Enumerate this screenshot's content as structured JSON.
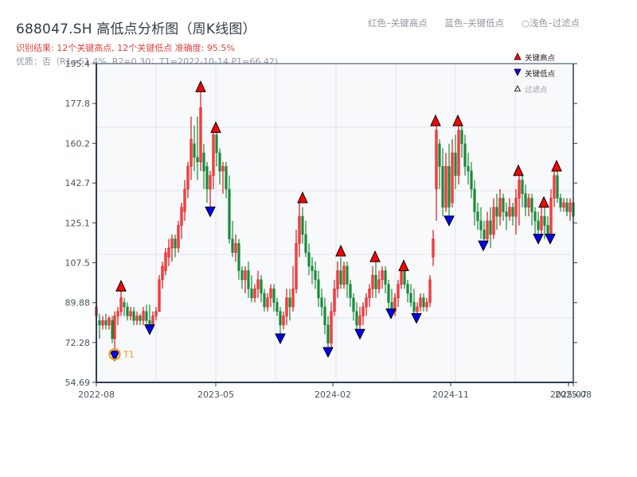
{
  "header": {
    "title": "688047.SH 高低点分析图（周K线图）",
    "result_line": "识别结果: 12个关键高点, 12个关键低点   准确度: 95.5%",
    "quality_line": "优质：否（R1=51.4%, R2=0.30；T1=2022-10-14 P1=66.42)"
  },
  "top_legend": {
    "red": "红色–关键高点",
    "blue": "蓝色–关键低点",
    "light": "○浅色–过滤点"
  },
  "legend": {
    "high": "关键高点",
    "low": "关键低点",
    "filter": "过滤点"
  },
  "colors": {
    "up": "#d7191c",
    "down": "#1a8a3a",
    "high_marker": "#ff0000",
    "low_marker": "#0000ff",
    "t1_ring": "#f39c12",
    "grid": "#e1e5ea",
    "plot_bg": "#f7f9fb",
    "axis": "#2c3e50"
  },
  "chart_data": {
    "type": "candlestick",
    "title": "688047.SH 高低点分析图（周K线图）",
    "xlabel": "",
    "ylabel": "",
    "ylim": [
      54.69,
      195.4
    ],
    "y_ticks": [
      "195.4",
      "177.8",
      "160.2",
      "142.7",
      "125.1",
      "107.5",
      "89.88",
      "72.28",
      "54.69"
    ],
    "x_ticks": [
      "2022-08",
      "2023-05",
      "2024-02",
      "2024-11",
      "2025-07",
      "2025-08"
    ],
    "grid": true,
    "legend_position": "upper right",
    "annotation": {
      "label": "T1",
      "date": "2022-10-14",
      "price": 66.42
    },
    "key_highs": [
      {
        "x": 152,
        "price": 95.0
      },
      {
        "x": 252,
        "price": 183.0
      },
      {
        "x": 271,
        "price": 165.0
      },
      {
        "x": 380,
        "price": 134.0
      },
      {
        "x": 428,
        "price": 110.5
      },
      {
        "x": 471,
        "price": 108.0
      },
      {
        "x": 507,
        "price": 104.0
      },
      {
        "x": 547,
        "price": 168.0
      },
      {
        "x": 575,
        "price": 168.0
      },
      {
        "x": 651,
        "price": 146.0
      },
      {
        "x": 683,
        "price": 132.0
      },
      {
        "x": 699,
        "price": 148.0
      }
    ],
    "key_lows": [
      {
        "x": 144,
        "price": 66.42
      },
      {
        "x": 188,
        "price": 78.0
      },
      {
        "x": 264,
        "price": 130.0
      },
      {
        "x": 352,
        "price": 74.0
      },
      {
        "x": 412,
        "price": 68.0
      },
      {
        "x": 452,
        "price": 76.0
      },
      {
        "x": 491,
        "price": 85.0
      },
      {
        "x": 523,
        "price": 83.0
      },
      {
        "x": 564,
        "price": 126.0
      },
      {
        "x": 607,
        "price": 115.0
      },
      {
        "x": 676,
        "price": 118.0
      },
      {
        "x": 691,
        "price": 118.0
      }
    ],
    "candles": [
      [
        121,
        84,
        88,
        80,
        89
      ],
      [
        125,
        82,
        80,
        74,
        85
      ],
      [
        129,
        80,
        82,
        78,
        84
      ],
      [
        133,
        82,
        80,
        78,
        85
      ],
      [
        137,
        80,
        83,
        78,
        84
      ],
      [
        141,
        82,
        74,
        72,
        84
      ],
      [
        144,
        74,
        84,
        68,
        86
      ],
      [
        148,
        84,
        86,
        80,
        88
      ],
      [
        152,
        86,
        92,
        84,
        95
      ],
      [
        156,
        90,
        88,
        84,
        92
      ],
      [
        160,
        88,
        84,
        82,
        90
      ],
      [
        164,
        84,
        86,
        82,
        88
      ],
      [
        168,
        86,
        82,
        80,
        88
      ],
      [
        172,
        82,
        84,
        80,
        86
      ],
      [
        176,
        84,
        82,
        80,
        85
      ],
      [
        180,
        82,
        86,
        80,
        88
      ],
      [
        184,
        86,
        82,
        80,
        89
      ],
      [
        188,
        82,
        80,
        78,
        89
      ],
      [
        192,
        80,
        84,
        80,
        86
      ],
      [
        196,
        84,
        86,
        82,
        88
      ],
      [
        200,
        86,
        100,
        86,
        102
      ],
      [
        204,
        100,
        106,
        96,
        108
      ],
      [
        208,
        104,
        112,
        102,
        114
      ],
      [
        212,
        110,
        114,
        106,
        118
      ],
      [
        216,
        114,
        118,
        108,
        120
      ],
      [
        220,
        118,
        114,
        110,
        120
      ],
      [
        224,
        114,
        124,
        112,
        126
      ],
      [
        228,
        124,
        132,
        118,
        134
      ],
      [
        232,
        130,
        140,
        126,
        144
      ],
      [
        236,
        140,
        150,
        136,
        152
      ],
      [
        240,
        150,
        162,
        144,
        172
      ],
      [
        244,
        160,
        154,
        148,
        168
      ],
      [
        248,
        154,
        152,
        144,
        172
      ],
      [
        252,
        152,
        176,
        148,
        183
      ],
      [
        256,
        156,
        148,
        140,
        160
      ],
      [
        260,
        150,
        140,
        134,
        152
      ],
      [
        264,
        140,
        146,
        130,
        148
      ],
      [
        268,
        146,
        164,
        140,
        166
      ],
      [
        272,
        164,
        156,
        150,
        165
      ],
      [
        276,
        156,
        148,
        142,
        158
      ],
      [
        280,
        148,
        150,
        138,
        152
      ],
      [
        284,
        150,
        140,
        136,
        152
      ],
      [
        288,
        140,
        118,
        116,
        146
      ],
      [
        292,
        118,
        112,
        110,
        126
      ],
      [
        296,
        112,
        116,
        108,
        120
      ],
      [
        300,
        116,
        104,
        100,
        118
      ],
      [
        304,
        104,
        100,
        96,
        106
      ],
      [
        308,
        100,
        104,
        94,
        106
      ],
      [
        312,
        104,
        96,
        92,
        108
      ],
      [
        316,
        96,
        92,
        90,
        102
      ],
      [
        320,
        92,
        96,
        90,
        98
      ],
      [
        324,
        96,
        100,
        92,
        104
      ],
      [
        328,
        100,
        94,
        90,
        102
      ],
      [
        332,
        94,
        88,
        86,
        96
      ],
      [
        336,
        88,
        92,
        86,
        94
      ],
      [
        340,
        92,
        96,
        88,
        98
      ],
      [
        344,
        96,
        90,
        86,
        98
      ],
      [
        348,
        90,
        86,
        84,
        92
      ],
      [
        352,
        86,
        80,
        74,
        88
      ],
      [
        356,
        80,
        84,
        78,
        86
      ],
      [
        360,
        84,
        92,
        80,
        96
      ],
      [
        364,
        92,
        88,
        82,
        96
      ],
      [
        368,
        88,
        96,
        86,
        106
      ],
      [
        372,
        96,
        116,
        94,
        122
      ],
      [
        376,
        116,
        128,
        110,
        134
      ],
      [
        380,
        128,
        120,
        116,
        132
      ],
      [
        384,
        120,
        112,
        110,
        126
      ],
      [
        388,
        112,
        106,
        102,
        116
      ],
      [
        392,
        106,
        104,
        98,
        110
      ],
      [
        396,
        104,
        100,
        96,
        108
      ],
      [
        400,
        100,
        92,
        88,
        104
      ],
      [
        404,
        92,
        88,
        84,
        96
      ],
      [
        408,
        88,
        80,
        76,
        92
      ],
      [
        412,
        80,
        72,
        68,
        84
      ],
      [
        416,
        72,
        86,
        70,
        90
      ],
      [
        420,
        86,
        96,
        84,
        100
      ],
      [
        424,
        96,
        104,
        92,
        108
      ],
      [
        428,
        104,
        98,
        96,
        110
      ],
      [
        432,
        98,
        106,
        96,
        108
      ],
      [
        436,
        106,
        98,
        92,
        108
      ],
      [
        440,
        98,
        92,
        88,
        100
      ],
      [
        444,
        92,
        86,
        82,
        94
      ],
      [
        448,
        86,
        80,
        78,
        90
      ],
      [
        452,
        80,
        84,
        76,
        88
      ],
      [
        456,
        84,
        88,
        80,
        90
      ],
      [
        460,
        88,
        92,
        84,
        94
      ],
      [
        464,
        92,
        96,
        88,
        98
      ],
      [
        468,
        96,
        102,
        92,
        106
      ],
      [
        472,
        102,
        96,
        92,
        108
      ],
      [
        476,
        96,
        100,
        94,
        104
      ],
      [
        480,
        100,
        104,
        96,
        106
      ],
      [
        484,
        104,
        98,
        94,
        106
      ],
      [
        488,
        98,
        90,
        86,
        100
      ],
      [
        492,
        90,
        86,
        84,
        96
      ],
      [
        496,
        86,
        92,
        84,
        94
      ],
      [
        500,
        92,
        98,
        88,
        100
      ],
      [
        504,
        98,
        104,
        96,
        106
      ],
      [
        508,
        104,
        98,
        96,
        106
      ],
      [
        512,
        98,
        94,
        90,
        100
      ],
      [
        516,
        94,
        90,
        88,
        98
      ],
      [
        520,
        90,
        86,
        84,
        96
      ],
      [
        524,
        86,
        88,
        84,
        90
      ],
      [
        528,
        88,
        92,
        86,
        94
      ],
      [
        532,
        92,
        88,
        86,
        94
      ],
      [
        536,
        88,
        90,
        86,
        92
      ],
      [
        540,
        90,
        100,
        88,
        102
      ],
      [
        544,
        110,
        118,
        106,
        122
      ],
      [
        548,
        140,
        166,
        126,
        168
      ],
      [
        552,
        160,
        150,
        140,
        162
      ],
      [
        556,
        150,
        132,
        128,
        158
      ],
      [
        560,
        132,
        150,
        130,
        156
      ],
      [
        564,
        150,
        132,
        126,
        160
      ],
      [
        568,
        134,
        156,
        132,
        162
      ],
      [
        572,
        156,
        146,
        140,
        164
      ],
      [
        576,
        146,
        166,
        142,
        168
      ],
      [
        580,
        166,
        160,
        154,
        168
      ],
      [
        584,
        160,
        150,
        146,
        164
      ],
      [
        588,
        150,
        148,
        142,
        156
      ],
      [
        592,
        148,
        140,
        136,
        152
      ],
      [
        596,
        140,
        130,
        124,
        144
      ],
      [
        600,
        130,
        126,
        122,
        134
      ],
      [
        604,
        126,
        122,
        118,
        132
      ],
      [
        608,
        122,
        118,
        115,
        126
      ],
      [
        612,
        118,
        126,
        116,
        130
      ],
      [
        616,
        126,
        120,
        114,
        132
      ],
      [
        620,
        120,
        132,
        118,
        136
      ],
      [
        624,
        132,
        128,
        122,
        138
      ],
      [
        628,
        128,
        136,
        124,
        140
      ],
      [
        632,
        136,
        130,
        126,
        138
      ],
      [
        636,
        130,
        128,
        122,
        134
      ],
      [
        640,
        128,
        132,
        126,
        136
      ],
      [
        644,
        132,
        128,
        124,
        134
      ],
      [
        648,
        128,
        136,
        120,
        140
      ],
      [
        652,
        136,
        144,
        124,
        146
      ],
      [
        656,
        144,
        138,
        132,
        146
      ],
      [
        660,
        138,
        132,
        128,
        142
      ],
      [
        664,
        132,
        136,
        128,
        138
      ],
      [
        668,
        136,
        130,
        124,
        138
      ],
      [
        672,
        130,
        126,
        120,
        132
      ],
      [
        676,
        126,
        122,
        118,
        130
      ],
      [
        680,
        122,
        128,
        120,
        132
      ],
      [
        684,
        128,
        124,
        118,
        132
      ],
      [
        688,
        124,
        120,
        118,
        128
      ],
      [
        692,
        120,
        136,
        118,
        140
      ],
      [
        696,
        136,
        146,
        132,
        148
      ],
      [
        700,
        146,
        136,
        134,
        148
      ],
      [
        704,
        136,
        132,
        130,
        138
      ],
      [
        708,
        132,
        134,
        130,
        136
      ],
      [
        712,
        134,
        130,
        128,
        136
      ],
      [
        716,
        130,
        134,
        126,
        136
      ],
      [
        720,
        134,
        128,
        124,
        136
      ]
    ]
  }
}
